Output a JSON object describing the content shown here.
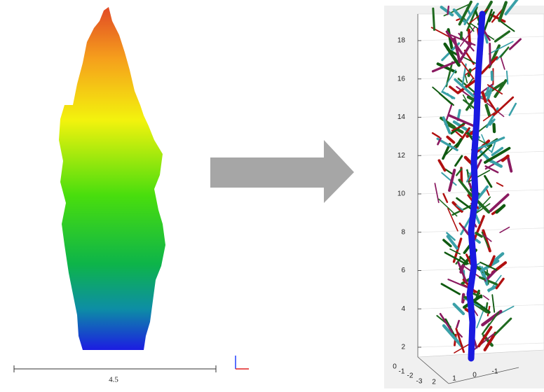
{
  "scale_bar": {
    "label": "4.5"
  },
  "model_axes": {
    "z_ticks": [
      2,
      4,
      6,
      8,
      10,
      12,
      14,
      16,
      18
    ],
    "x_ticks": [
      0,
      -1,
      -2,
      -3
    ],
    "y_ticks": [
      2,
      1,
      0,
      -1
    ]
  }
}
